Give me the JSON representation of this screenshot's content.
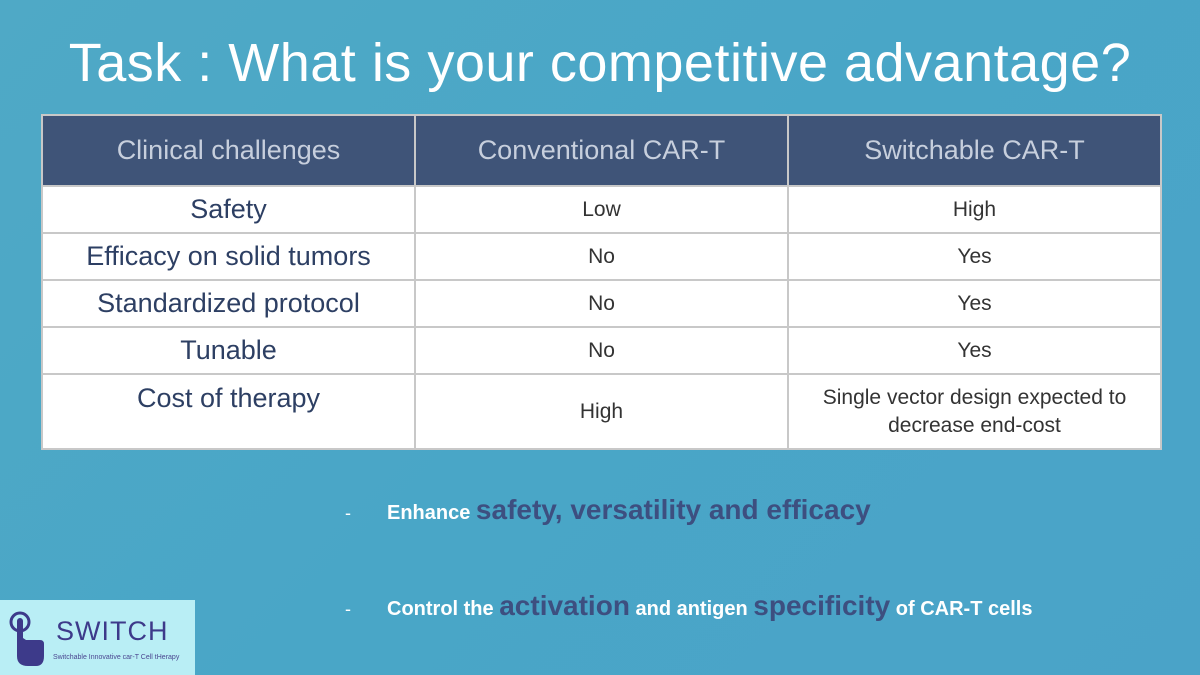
{
  "slide": {
    "title": "Task : What is your competitive advantage?"
  },
  "table": {
    "headers": [
      "Clinical challenges",
      "Conventional CAR-T",
      "Switchable CAR-T"
    ],
    "rows": [
      {
        "challenge": "Safety",
        "conventional": "Low",
        "switchable": "High"
      },
      {
        "challenge": "Efficacy on solid tumors",
        "conventional": "No",
        "switchable": "Yes"
      },
      {
        "challenge": "Standardized protocol",
        "conventional": "No",
        "switchable": "Yes"
      },
      {
        "challenge": "Tunable",
        "conventional": "No",
        "switchable": "Yes"
      },
      {
        "challenge": "Cost of therapy",
        "conventional": "High",
        "switchable": "Single vector design expected to decrease end-cost"
      }
    ]
  },
  "bullets": {
    "marker": "-",
    "b1": {
      "p1": "Enhance ",
      "p2": "safety, versatility and efficacy"
    },
    "b2": {
      "p1": "Control the ",
      "p2": "activation",
      "p3": " and antigen ",
      "p4": "specificity",
      "p5": " of CAR-T cells"
    }
  },
  "logo": {
    "name": "SWITCH",
    "tagline": "Switchable Innovative car-T Cell tHerapy",
    "icon": "hand-pointer-icon",
    "bg_color": "#b9eef5",
    "color": "#3d3a8a"
  },
  "colors": {
    "header_bg": "#3f5478",
    "accent_text": "#3d4f80"
  }
}
